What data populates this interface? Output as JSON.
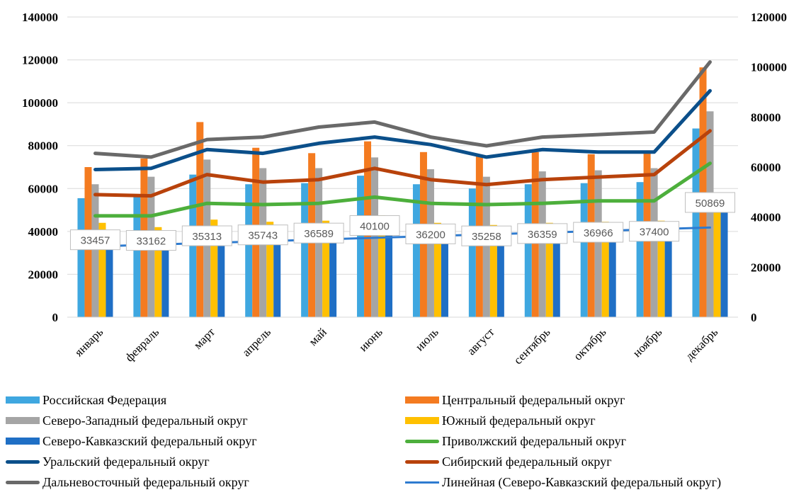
{
  "chart_data": {
    "type": "bar",
    "title": "",
    "xlabel": "",
    "ylabel": "",
    "categories": [
      "январь",
      "февраль",
      "март",
      "апрель",
      "май",
      "июнь",
      "июль",
      "август",
      "сентябрь",
      "октябрь",
      "ноябрь",
      "декабрь"
    ],
    "y_left": {
      "ticks": [
        0,
        20000,
        40000,
        60000,
        80000,
        100000,
        120000,
        140000
      ],
      "ylim": [
        0,
        140000
      ]
    },
    "y_right": {
      "ticks": [
        0,
        20000,
        40000,
        60000,
        80000,
        100000,
        120000
      ],
      "ylim": [
        0,
        120000
      ]
    },
    "grid": true,
    "legend_position": "bottom",
    "series": [
      {
        "name": "Российская Федерация",
        "kind": "bar",
        "axis": "left",
        "color": "#3fa7e0",
        "values": [
          55500,
          56500,
          66500,
          62000,
          62500,
          66000,
          62000,
          60000,
          62000,
          62500,
          63000,
          88000
        ]
      },
      {
        "name": "Центральный федеральный округ",
        "kind": "bar",
        "axis": "left",
        "color": "#f47b20",
        "values": [
          70000,
          74000,
          91000,
          79000,
          76500,
          82000,
          77000,
          75000,
          77000,
          76000,
          77000,
          116500
        ]
      },
      {
        "name": "Северо-Западный федеральный округ",
        "kind": "bar",
        "axis": "left",
        "color": "#a5a5a5",
        "values": [
          62000,
          65500,
          73500,
          69500,
          69500,
          74500,
          69000,
          65500,
          68000,
          68500,
          69500,
          96000
        ]
      },
      {
        "name": "Южный федеральный округ",
        "kind": "bar",
        "axis": "left",
        "color": "#ffc000",
        "values": [
          44000,
          42000,
          45500,
          44500,
          45000,
          47500,
          44000,
          43000,
          44000,
          44500,
          45000,
          54500
        ]
      },
      {
        "name": "Северо-Кавказский федеральный округ",
        "kind": "bar",
        "axis": "left",
        "color": "#1f6fc5",
        "values": [
          33457,
          33162,
          35313,
          35743,
          36589,
          40100,
          36200,
          35258,
          36359,
          36966,
          37400,
          50869
        ]
      },
      {
        "name": "Приволжский федеральный округ",
        "kind": "line",
        "axis": "right",
        "color": "#4daf3c",
        "values": [
          40500,
          40500,
          45500,
          45000,
          45500,
          48000,
          45500,
          45000,
          45500,
          46500,
          46500,
          61500
        ]
      },
      {
        "name": "Уральский федеральный округ",
        "kind": "line",
        "axis": "right",
        "color": "#0b4f8a",
        "values": [
          59000,
          59500,
          67000,
          65500,
          69500,
          72000,
          69000,
          64000,
          67000,
          66000,
          66000,
          90500
        ]
      },
      {
        "name": "Сибирский федеральный округ",
        "kind": "line",
        "axis": "right",
        "color": "#b8420b",
        "values": [
          49000,
          48500,
          57000,
          54000,
          55000,
          59500,
          55000,
          53000,
          55000,
          56000,
          57000,
          74500
        ]
      },
      {
        "name": "Дальневосточный федеральный округ",
        "kind": "line",
        "axis": "right",
        "color": "#696969",
        "values": [
          65500,
          64000,
          71000,
          72000,
          76000,
          78000,
          72000,
          68500,
          72000,
          73000,
          74000,
          102000
        ]
      },
      {
        "name": "Линейная (Северо-Кавказский федеральный округ)",
        "kind": "trendline",
        "axis": "left",
        "color": "#2e7bd0",
        "values": [
          33000,
          33800,
          34600,
          35400,
          36200,
          37000,
          37800,
          38600,
          39400,
          40200,
          41000,
          41800
        ]
      }
    ],
    "data_labels": {
      "series": "Северо-Кавказский федеральный округ",
      "values": [
        "33457",
        "33162",
        "35313",
        "35743",
        "36589",
        "40100",
        "36200",
        "35258",
        "36359",
        "36966",
        "37400",
        "50869"
      ]
    }
  }
}
